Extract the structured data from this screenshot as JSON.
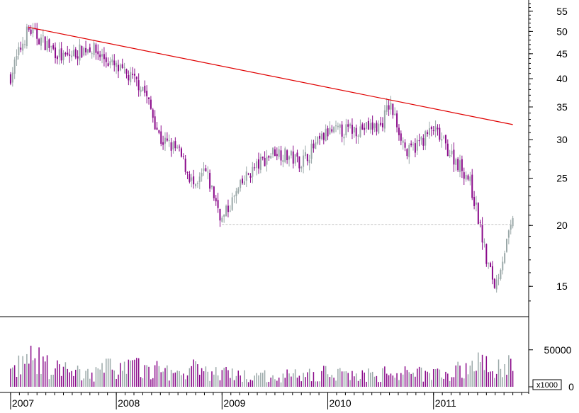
{
  "chart_data": {
    "type": "candlestick",
    "price_panel": {
      "y_scale": "log",
      "ylim": [
        13,
        58
      ],
      "y_ticks": [
        15,
        20,
        25,
        30,
        35,
        40,
        45,
        50,
        55
      ],
      "grid": false,
      "trendline": {
        "color": "#e00000",
        "points": [
          [
            "2007-03",
            51.0
          ],
          [
            "2011-10",
            32.2
          ]
        ]
      },
      "support_line": {
        "color": "#c0c0c0",
        "style": "dashed",
        "value": 20.1,
        "from": "2009-01",
        "to": "2011-10"
      },
      "up_color": "#9aa8a8",
      "down_color": "#8a0a8a",
      "x_anchor_dates": [
        "2007-01",
        "2007-03",
        "2007-07",
        "2007-10",
        "2008-01",
        "2008-04",
        "2008-06",
        "2008-08",
        "2008-10",
        "2008-11",
        "2009-01",
        "2009-04",
        "2009-07",
        "2009-10",
        "2010-01",
        "2010-04",
        "2010-07",
        "2010-08",
        "2010-10",
        "2011-01",
        "2011-03",
        "2011-05",
        "2011-07",
        "2011-08",
        "2011-10"
      ],
      "close_anchors": [
        40.5,
        50.5,
        44.0,
        46.5,
        42.0,
        38.5,
        30.0,
        28.5,
        23.5,
        26.0,
        20.5,
        25.5,
        28.5,
        27.0,
        31.0,
        31.5,
        32.0,
        35.5,
        28.0,
        31.5,
        28.0,
        25.0,
        17.0,
        15.0,
        20.2
      ]
    },
    "volume_panel": {
      "unit_label": "x1000",
      "ylim": [
        0,
        90000
      ],
      "y_ticks": [
        0,
        50000
      ],
      "bar_color": "#8a0a8a",
      "volume_anchors": [
        20000,
        40000,
        22000,
        18000,
        30000,
        25000,
        22000,
        20000,
        25000,
        20000,
        18000,
        15000,
        15000,
        16000,
        20000,
        17000,
        16000,
        20000,
        18000,
        20000,
        22000,
        25000,
        35000,
        30000,
        28000
      ]
    },
    "x_axis": {
      "tick_labels": [
        "2007",
        "2008",
        "2009",
        "2010",
        "2011"
      ]
    }
  }
}
